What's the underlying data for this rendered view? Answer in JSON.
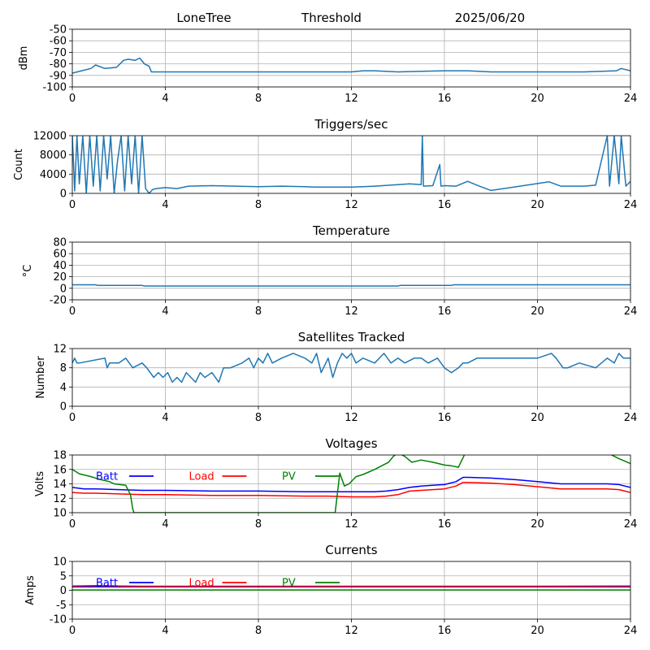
{
  "header": {
    "station": "LoneTree",
    "mode": "Threshold",
    "date": "2025/06/20"
  },
  "chart_data": [
    {
      "type": "line",
      "title": "",
      "xlabel": "",
      "ylabel": "dBm",
      "xlim": [
        0,
        24
      ],
      "ylim": [
        -100,
        -50
      ],
      "xticks": [
        "0",
        "4",
        "8",
        "12",
        "16",
        "20",
        "24"
      ],
      "yticks": [
        "-100",
        "-90",
        "-80",
        "-70",
        "-60",
        "-50"
      ],
      "grid": true,
      "series": [
        {
          "color": "#1f77b4",
          "x": [
            0,
            0.4,
            0.8,
            1.0,
            1.4,
            1.9,
            2.2,
            2.4,
            2.7,
            2.9,
            3.1,
            3.3,
            3.4,
            5,
            8,
            10.5,
            12,
            12.5,
            13,
            14,
            16,
            17,
            18,
            20,
            22,
            23.4,
            23.6,
            24
          ],
          "y": [
            -88,
            -86,
            -84,
            -81,
            -84,
            -83,
            -77,
            -76,
            -77,
            -75,
            -80,
            -82,
            -87,
            -87,
            -87,
            -87,
            -87,
            -86,
            -86,
            -87,
            -86,
            -86,
            -87,
            -87,
            -87,
            -86,
            -84,
            -86
          ]
        }
      ]
    },
    {
      "type": "line",
      "title": "Triggers/sec",
      "xlabel": "",
      "ylabel": "Count",
      "xlim": [
        0,
        24
      ],
      "ylim": [
        0,
        12000
      ],
      "xticks": [
        "0",
        "4",
        "8",
        "12",
        "16",
        "20",
        "24"
      ],
      "yticks": [
        "0",
        "4000",
        "8000",
        "12000"
      ],
      "grid": true,
      "series": [
        {
          "color": "#1f77b4",
          "x": [
            0,
            0.1,
            0.2,
            0.3,
            0.45,
            0.6,
            0.75,
            0.9,
            1.05,
            1.2,
            1.35,
            1.5,
            1.65,
            1.8,
            1.95,
            2.1,
            2.25,
            2.4,
            2.55,
            2.7,
            2.85,
            3.0,
            3.15,
            3.3,
            3.45,
            3.6,
            4.0,
            4.5,
            5,
            6,
            7,
            8,
            9,
            10,
            10.5,
            11,
            12,
            12.5,
            13,
            14,
            14.5,
            15,
            15.05,
            15.1,
            15.5,
            15.8,
            15.85,
            16,
            16.5,
            17,
            17.5,
            18,
            20.5,
            21,
            22,
            22.5,
            23,
            23.1,
            23.3,
            23.5,
            23.6,
            23.8,
            24
          ],
          "y": [
            12000,
            500,
            12000,
            2000,
            12000,
            0,
            12000,
            1500,
            12000,
            500,
            12000,
            3000,
            12000,
            0,
            7000,
            12000,
            500,
            12000,
            2000,
            12000,
            0,
            12000,
            1000,
            0,
            800,
            1000,
            1200,
            1000,
            1500,
            1600,
            1500,
            1400,
            1500,
            1400,
            1300,
            1300,
            1300,
            1400,
            1500,
            1800,
            2000,
            1800,
            12000,
            1500,
            1600,
            6000,
            1500,
            1600,
            1500,
            2500,
            1500,
            600,
            2400,
            1500,
            1500,
            1700,
            12000,
            1500,
            12000,
            2000,
            12000,
            1500,
            2500
          ]
        }
      ]
    },
    {
      "type": "line",
      "title": "Temperature",
      "xlabel": "",
      "ylabel": "°C",
      "xlim": [
        0,
        24
      ],
      "ylim": [
        -20,
        80
      ],
      "xticks": [
        "0",
        "4",
        "8",
        "12",
        "16",
        "20",
        "24"
      ],
      "yticks": [
        "-20",
        "0",
        "20",
        "40",
        "60",
        "80"
      ],
      "grid": true,
      "series": [
        {
          "color": "#1f77b4",
          "x": [
            0,
            1,
            1.1,
            3,
            3.1,
            14,
            14.1,
            16.3,
            16.4,
            24
          ],
          "y": [
            6,
            6,
            5,
            5,
            4,
            4,
            5,
            5,
            6,
            6
          ]
        }
      ]
    },
    {
      "type": "line",
      "title": "Satellites Tracked",
      "xlabel": "",
      "ylabel": "Number",
      "xlim": [
        0,
        24
      ],
      "ylim": [
        0,
        12
      ],
      "xticks": [
        "0",
        "4",
        "8",
        "12",
        "16",
        "20",
        "24"
      ],
      "yticks": [
        "0",
        "4",
        "8",
        "12"
      ],
      "grid": true,
      "series": [
        {
          "color": "#1f77b4",
          "x": [
            0,
            0.1,
            0.2,
            0.3,
            1.4,
            1.5,
            1.6,
            2.0,
            2.3,
            2.6,
            3.0,
            3.2,
            3.5,
            3.7,
            3.9,
            4.1,
            4.3,
            4.5,
            4.7,
            4.9,
            5.1,
            5.3,
            5.5,
            5.7,
            6,
            6.3,
            6.5,
            6.8,
            7.3,
            7.6,
            7.8,
            8.0,
            8.2,
            8.4,
            8.6,
            9.0,
            9.5,
            10.0,
            10.3,
            10.5,
            10.7,
            11.0,
            11.2,
            11.4,
            11.6,
            11.8,
            12.0,
            12.2,
            12.5,
            13,
            13.4,
            13.7,
            14,
            14.3,
            14.7,
            15,
            15.3,
            15.7,
            16,
            16.3,
            16.6,
            16.8,
            17,
            17.4,
            18,
            19,
            20,
            20.6,
            20.8,
            21.1,
            21.3,
            21.8,
            22.5,
            23,
            23.3,
            23.5,
            23.7,
            24
          ],
          "y": [
            9,
            10,
            9,
            9,
            10,
            8,
            9,
            9,
            10,
            8,
            9,
            8,
            6,
            7,
            6,
            7,
            5,
            6,
            5,
            7,
            6,
            5,
            7,
            6,
            7,
            5,
            8,
            8,
            9,
            10,
            8,
            10,
            9,
            11,
            9,
            10,
            11,
            10,
            9,
            11,
            7,
            10,
            6,
            9,
            11,
            10,
            11,
            9,
            10,
            9,
            11,
            9,
            10,
            9,
            10,
            10,
            9,
            10,
            8,
            7,
            8,
            9,
            9,
            10,
            10,
            10,
            10,
            11,
            10,
            8,
            8,
            9,
            8,
            10,
            9,
            11,
            10,
            10
          ]
        }
      ]
    },
    {
      "type": "line",
      "title": "Voltages",
      "xlabel": "",
      "ylabel": "Volts",
      "xlim": [
        0,
        24
      ],
      "ylim": [
        10,
        18
      ],
      "xticks": [
        "0",
        "4",
        "8",
        "12",
        "16",
        "20",
        "24"
      ],
      "yticks": [
        "10",
        "12",
        "14",
        "16",
        "18"
      ],
      "grid": true,
      "legend": "top-left",
      "series": [
        {
          "name": "Batt",
          "color": "#0000ff",
          "x": [
            0,
            0.5,
            1,
            2,
            3,
            4,
            6,
            8,
            10,
            11,
            12,
            13,
            13.5,
            14,
            14.5,
            15,
            15.5,
            16,
            16.5,
            16.8,
            17,
            18,
            19,
            20,
            21,
            22,
            23,
            23.5,
            24
          ],
          "y": [
            13.5,
            13.3,
            13.3,
            13.2,
            13.1,
            13.1,
            13.0,
            13.0,
            12.9,
            12.9,
            12.9,
            12.9,
            13.0,
            13.2,
            13.5,
            13.7,
            13.8,
            13.9,
            14.3,
            14.9,
            14.9,
            14.8,
            14.6,
            14.3,
            14.0,
            14.0,
            14.0,
            13.9,
            13.5
          ]
        },
        {
          "name": "Load",
          "color": "#ff0000",
          "x": [
            0,
            0.5,
            1,
            2,
            3,
            4,
            6,
            8,
            10,
            11,
            12,
            13,
            13.5,
            14,
            14.5,
            15,
            15.5,
            16,
            16.5,
            16.8,
            17,
            18,
            19,
            20,
            21,
            22,
            23,
            23.5,
            24
          ],
          "y": [
            12.8,
            12.7,
            12.7,
            12.6,
            12.5,
            12.5,
            12.4,
            12.4,
            12.3,
            12.3,
            12.2,
            12.2,
            12.3,
            12.5,
            13.0,
            13.1,
            13.2,
            13.3,
            13.7,
            14.2,
            14.2,
            14.1,
            13.9,
            13.6,
            13.3,
            13.3,
            13.3,
            13.2,
            12.8
          ]
        },
        {
          "name": "PV",
          "color": "#008000",
          "x": [
            0,
            0.3,
            0.8,
            1.2,
            1.6,
            1.8,
            2.3,
            2.5,
            2.6,
            2.65,
            11.3,
            11.5,
            11.7,
            11.9,
            12.2,
            12.5,
            13,
            13.3,
            13.6,
            13.8,
            14,
            14.3,
            14.6,
            15,
            15.5,
            16,
            16.3,
            16.6,
            16.9,
            23,
            23.5,
            24
          ],
          "y": [
            16,
            15.4,
            15,
            14.6,
            14.3,
            14.0,
            13.8,
            12.5,
            10.5,
            10,
            10,
            15.5,
            13.7,
            14.0,
            15.0,
            15.3,
            16.0,
            16.5,
            17.0,
            17.8,
            18.3,
            17.8,
            17.0,
            17.3,
            17.0,
            16.6,
            16.5,
            16.3,
            18.3,
            18.3,
            17.5,
            16.8
          ]
        }
      ]
    },
    {
      "type": "line",
      "title": "Currents",
      "xlabel": "",
      "ylabel": "Amps",
      "xlim": [
        0,
        24
      ],
      "ylim": [
        -10,
        10
      ],
      "xticks": [
        "0",
        "4",
        "8",
        "12",
        "16",
        "20",
        "24"
      ],
      "yticks": [
        "-10",
        "-5",
        "0",
        "5",
        "10"
      ],
      "grid": true,
      "legend": "top-left",
      "series": [
        {
          "name": "Batt",
          "color": "#0000ff",
          "x": [
            0,
            24
          ],
          "y": [
            1.2,
            1.2
          ]
        },
        {
          "name": "Load",
          "color": "#ff0000",
          "x": [
            0,
            1,
            2,
            3,
            4,
            8,
            12,
            16,
            20,
            24
          ],
          "y": [
            1.5,
            1.6,
            1.5,
            1.4,
            1.4,
            1.4,
            1.4,
            1.4,
            1.4,
            1.5
          ]
        },
        {
          "name": "PV",
          "color": "#008000",
          "x": [
            0,
            24
          ],
          "y": [
            0.1,
            0.1
          ]
        }
      ]
    }
  ]
}
